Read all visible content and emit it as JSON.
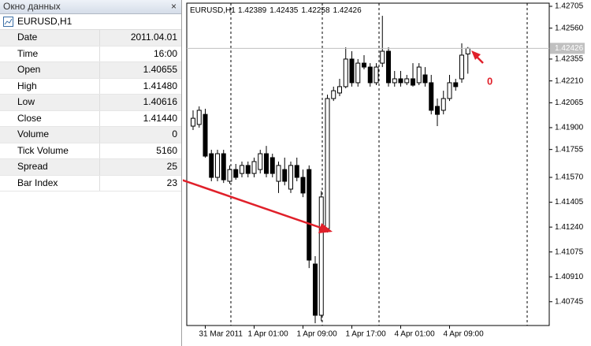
{
  "data_window": {
    "title": "Окно данных",
    "symbol": "EURUSD,H1",
    "rows": [
      [
        "Date",
        "2011.04.01"
      ],
      [
        "Time",
        "16:00"
      ],
      [
        "Open",
        "1.40655"
      ],
      [
        "High",
        "1.41480"
      ],
      [
        "Low",
        "1.40616"
      ],
      [
        "Close",
        "1.41440"
      ],
      [
        "Volume",
        "0"
      ],
      [
        "Tick Volume",
        "5160"
      ],
      [
        "Spread",
        "25"
      ],
      [
        "Bar Index",
        "23"
      ]
    ]
  },
  "chart": {
    "type": "candlestick",
    "symbol": "EURUSD,H1",
    "header_ohlc": [
      "1.42389",
      "1.42435",
      "1.42258",
      "1.42426"
    ],
    "annotation": "0",
    "ylim": [
      1.42726,
      1.40587
    ],
    "yticks": [
      {
        "value": 1.42705,
        "label": "1.42705"
      },
      {
        "value": 1.4256,
        "label": "1.42560"
      },
      {
        "value": 1.42355,
        "label": "1.42355"
      },
      {
        "value": 1.4221,
        "label": "1.42210"
      },
      {
        "value": 1.42065,
        "label": "1.42065"
      },
      {
        "value": 1.419,
        "label": "1.41900"
      },
      {
        "value": 1.41755,
        "label": "1.41755"
      },
      {
        "value": 1.4157,
        "label": "1.41570"
      },
      {
        "value": 1.41405,
        "label": "1.41405"
      },
      {
        "value": 1.4124,
        "label": "1.41240"
      },
      {
        "value": 1.41075,
        "label": "1.41075"
      },
      {
        "value": 1.4091,
        "label": "1.40910"
      },
      {
        "value": 1.40745,
        "label": "1.40745"
      }
    ],
    "last_price": 1.42426,
    "categories": [
      null,
      null,
      "31 Mar 2011",
      null,
      null,
      null,
      null,
      null,
      null,
      null,
      "1 Apr 01:00",
      null,
      null,
      null,
      null,
      null,
      null,
      null,
      "1 Apr 09:00",
      null,
      null,
      null,
      null,
      null,
      null,
      null,
      "1 Apr 17:00",
      null,
      null,
      null,
      null,
      null,
      null,
      null,
      "4 Apr 01:00",
      null,
      null,
      null,
      null,
      null,
      null,
      null,
      "4 Apr 09:00",
      null,
      null,
      null
    ],
    "candles": [
      [
        1.4191,
        1.42015,
        1.41884,
        1.41962
      ],
      [
        1.41921,
        1.42041,
        1.419,
        1.42015
      ],
      [
        1.41988,
        1.42025,
        1.41701,
        1.41711
      ],
      [
        1.41727,
        1.41753,
        1.41544,
        1.4157
      ],
      [
        1.4157,
        1.41753,
        1.41544,
        1.41727
      ],
      [
        1.41727,
        1.41753,
        1.41533,
        1.41554
      ],
      [
        1.41544,
        1.41649,
        1.41528,
        1.41622
      ],
      [
        1.41622,
        1.41659,
        1.41554,
        1.4157
      ],
      [
        1.41596,
        1.41675,
        1.4157,
        1.41649
      ],
      [
        1.41649,
        1.41675,
        1.4157,
        1.41596
      ],
      [
        1.41596,
        1.41701,
        1.4157,
        1.41675
      ],
      [
        1.41622,
        1.41753,
        1.41596,
        1.41727
      ],
      [
        1.41727,
        1.41779,
        1.4157,
        1.41596
      ],
      [
        1.41701,
        1.41727,
        1.4157,
        1.41596
      ],
      [
        1.41544,
        1.41675,
        1.41466,
        1.41649
      ],
      [
        1.41622,
        1.41701,
        1.41517,
        1.41544
      ],
      [
        1.41492,
        1.41675,
        1.41466,
        1.41649
      ],
      [
        1.41649,
        1.41701,
        1.41544,
        1.4157
      ],
      [
        1.4157,
        1.41622,
        1.41439,
        1.41466
      ],
      [
        1.41622,
        1.41649,
        1.40968,
        1.41021
      ],
      [
        1.40995,
        1.41047,
        1.40602,
        1.40655
      ],
      [
        1.40655,
        1.4148,
        1.40616,
        1.4144
      ],
      [
        1.4123,
        1.42119,
        1.41204,
        1.42093
      ],
      [
        1.42093,
        1.42172,
        1.42077,
        1.42145
      ],
      [
        1.4213,
        1.42224,
        1.42109,
        1.42172
      ],
      [
        1.42172,
        1.42433,
        1.42161,
        1.42355
      ],
      [
        1.42355,
        1.42407,
        1.42172,
        1.42198
      ],
      [
        1.42198,
        1.42355,
        1.42172,
        1.42328
      ],
      [
        1.42328,
        1.42381,
        1.42287,
        1.42302
      ],
      [
        1.42302,
        1.42328,
        1.42172,
        1.42198
      ],
      [
        1.42198,
        1.42328,
        1.42182,
        1.42302
      ],
      [
        1.42328,
        1.42642,
        1.42302,
        1.42407
      ],
      [
        1.42407,
        1.42433,
        1.42172,
        1.42198
      ],
      [
        1.42198,
        1.42276,
        1.42172,
        1.42224
      ],
      [
        1.42224,
        1.42276,
        1.42172,
        1.42198
      ],
      [
        1.42198,
        1.4225,
        1.42182,
        1.42224
      ],
      [
        1.42224,
        1.42328,
        1.42172,
        1.42182
      ],
      [
        1.42198,
        1.42328,
        1.42182,
        1.42302
      ],
      [
        1.4225,
        1.42302,
        1.42172,
        1.42198
      ],
      [
        1.42198,
        1.4225,
        1.41988,
        1.42015
      ],
      [
        1.42041,
        1.42093,
        1.4191,
        1.41988
      ],
      [
        1.42015,
        1.42145,
        1.41988,
        1.42093
      ],
      [
        1.42093,
        1.4225,
        1.42077,
        1.42198
      ],
      [
        1.42198,
        1.42224,
        1.42145,
        1.42172
      ],
      [
        1.42224,
        1.42459,
        1.42198,
        1.42381
      ],
      [
        1.42389,
        1.42435,
        1.42258,
        1.42426
      ]
    ]
  }
}
